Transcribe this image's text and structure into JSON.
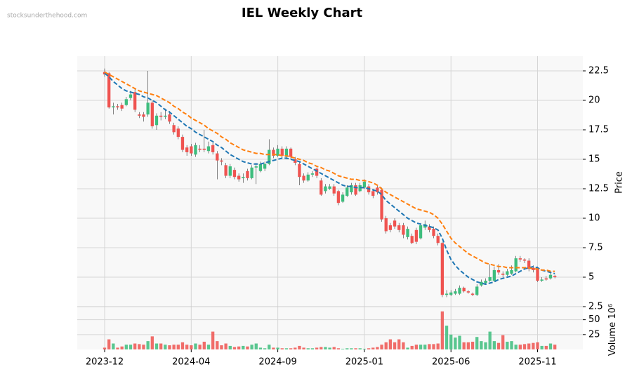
{
  "chart_data": {
    "type": "candlestick",
    "title": "IEL Weekly Chart",
    "watermark": "stocksunderthehood.com",
    "y_label": "Price",
    "volume_label": "Volume",
    "volume_offset": "10⁶",
    "up_color": "#3dbd7d",
    "down_color": "#ef5350",
    "categories": [
      "2023-12",
      null,
      null,
      null,
      null,
      null,
      null,
      null,
      null,
      null,
      null,
      null,
      null,
      null,
      null,
      null,
      null,
      null,
      null,
      null,
      "2024-04",
      null,
      null,
      null,
      null,
      null,
      null,
      null,
      null,
      null,
      null,
      null,
      null,
      null,
      null,
      null,
      null,
      null,
      null,
      null,
      "2024-09",
      null,
      null,
      null,
      null,
      null,
      null,
      null,
      null,
      null,
      null,
      null,
      null,
      null,
      null,
      null,
      null,
      null,
      null,
      null,
      "2025-01",
      null,
      null,
      null,
      null,
      null,
      null,
      null,
      null,
      null,
      null,
      null,
      null,
      null,
      null,
      null,
      null,
      null,
      null,
      null,
      "2025-06",
      null,
      null,
      null,
      null,
      null,
      null,
      null,
      null,
      null,
      null,
      null,
      null,
      null,
      null,
      null,
      null,
      null,
      null,
      null,
      "2025-11",
      null,
      null,
      null,
      null
    ],
    "open": [
      22.4,
      22.3,
      19.4,
      19.5,
      19.6,
      19.6,
      20.2,
      20.7,
      18.8,
      18.8,
      18.8,
      19.8,
      17.9,
      18.7,
      18.6,
      18.8,
      17.9,
      17.6,
      16.9,
      16.0,
      16.1,
      15.4,
      15.9,
      15.9,
      15.7,
      16.2,
      15.5,
      14.9,
      14.5,
      13.6,
      14.1,
      13.6,
      13.4,
      14.0,
      13.4,
      14.3,
      14.0,
      14.2,
      14.6,
      15.8,
      15.3,
      15.9,
      15.2,
      15.9,
      15.0,
      14.6,
      13.6,
      13.2,
      13.7,
      14.2,
      13.2,
      12.3,
      12.5,
      12.7,
      12.3,
      11.4,
      11.9,
      12.2,
      12.8,
      12.3,
      12.6,
      12.7,
      12.3,
      12.6,
      12.4,
      10.0,
      9.4,
      9.8,
      9.4,
      9.4,
      8.4,
      8.5,
      9.0,
      8.3,
      9.2,
      9.3,
      9.1,
      8.5,
      7.9,
      3.5,
      3.5,
      3.6,
      3.6,
      4.1,
      3.8,
      3.6,
      3.5,
      4.3,
      4.5,
      4.7,
      4.7,
      5.6,
      5.3,
      5.2,
      5.3,
      5.5,
      6.6,
      6.5,
      6.4,
      5.8,
      5.8,
      4.7,
      4.9,
      4.9,
      5.1
    ],
    "high": [
      22.7,
      22.4,
      19.8,
      19.7,
      19.8,
      20.3,
      20.8,
      21.0,
      19.0,
      19.0,
      22.5,
      20.0,
      18.9,
      19.0,
      19.3,
      19.1,
      18.1,
      17.8,
      17.1,
      16.2,
      16.3,
      16.4,
      16.2,
      17.5,
      16.5,
      16.4,
      15.7,
      15.1,
      14.7,
      14.6,
      14.3,
      13.8,
      13.8,
      14.2,
      14.5,
      14.7,
      14.8,
      14.8,
      16.7,
      16.0,
      16.2,
      16.1,
      16.1,
      16.0,
      15.2,
      14.8,
      13.8,
      13.9,
      14.0,
      14.3,
      13.4,
      12.9,
      12.9,
      12.9,
      12.4,
      12.2,
      12.8,
      13.0,
      13.0,
      13.0,
      13.3,
      12.9,
      12.5,
      12.8,
      12.6,
      10.2,
      9.6,
      10.0,
      9.6,
      9.6,
      9.3,
      8.7,
      9.2,
      9.6,
      9.8,
      9.5,
      9.3,
      8.7,
      8.0,
      3.9,
      3.9,
      4.0,
      4.3,
      4.2,
      3.9,
      3.7,
      4.4,
      4.8,
      4.9,
      6.1,
      5.9,
      6.1,
      5.5,
      5.7,
      6.0,
      6.8,
      6.8,
      6.6,
      6.6,
      6.0,
      5.9,
      5.0,
      5.1,
      5.4,
      5.2
    ],
    "low": [
      22.0,
      19.3,
      18.8,
      19.2,
      19.1,
      19.5,
      20.0,
      19.0,
      18.5,
      18.2,
      18.6,
      17.6,
      17.5,
      18.3,
      18.4,
      18.0,
      17.1,
      16.7,
      15.6,
      15.3,
      15.3,
      15.2,
      15.6,
      15.6,
      15.5,
      15.4,
      13.3,
      14.5,
      13.4,
      13.4,
      13.3,
      13.1,
      13.0,
      13.2,
      13.3,
      12.9,
      13.9,
      14.0,
      14.5,
      15.1,
      15.2,
      15.1,
      15.0,
      15.0,
      14.5,
      12.8,
      13.0,
      13.1,
      13.5,
      13.4,
      11.9,
      12.1,
      12.4,
      11.9,
      11.1,
      11.3,
      11.8,
      12.0,
      11.9,
      12.2,
      12.5,
      12.0,
      11.7,
      12.0,
      9.7,
      8.7,
      8.8,
      9.1,
      8.8,
      8.3,
      8.2,
      7.8,
      7.8,
      8.2,
      9.0,
      8.8,
      8.3,
      7.7,
      3.3,
      3.3,
      3.4,
      3.5,
      3.5,
      3.7,
      3.6,
      3.4,
      3.4,
      4.2,
      4.4,
      4.6,
      4.6,
      5.2,
      5.0,
      5.1,
      5.2,
      5.4,
      6.3,
      6.2,
      5.5,
      5.4,
      4.6,
      4.6,
      4.7,
      4.8,
      4.9
    ],
    "close": [
      22.2,
      19.4,
      19.5,
      19.4,
      19.3,
      20.1,
      20.5,
      19.2,
      18.7,
      18.6,
      19.8,
      17.8,
      18.7,
      18.6,
      18.7,
      18.2,
      17.3,
      16.9,
      15.8,
      15.6,
      15.5,
      16.2,
      15.8,
      15.8,
      16.1,
      15.6,
      14.9,
      14.8,
      13.6,
      14.4,
      13.5,
      13.3,
      13.5,
      13.4,
      14.3,
      14.4,
      14.6,
      14.6,
      15.8,
      15.3,
      15.9,
      15.3,
      15.9,
      15.2,
      14.7,
      13.5,
      13.2,
      13.7,
      13.8,
      13.6,
      12.0,
      12.7,
      12.7,
      12.1,
      11.3,
      12.0,
      12.6,
      12.8,
      12.0,
      12.8,
      13.1,
      12.2,
      11.9,
      12.2,
      9.9,
      8.9,
      9.0,
      9.3,
      9.0,
      8.6,
      9.1,
      7.9,
      8.0,
      9.4,
      9.5,
      9.0,
      8.5,
      7.9,
      3.5,
      3.6,
      3.7,
      3.8,
      4.1,
      3.8,
      3.7,
      3.5,
      4.2,
      4.6,
      4.7,
      5.0,
      5.6,
      5.4,
      5.2,
      5.5,
      5.6,
      6.6,
      6.5,
      6.4,
      5.7,
      5.6,
      4.7,
      4.8,
      4.8,
      5.2,
      5.0
    ],
    "volume": [
      3,
      17,
      10,
      3,
      5,
      8,
      8,
      10,
      9,
      8,
      14,
      22,
      10,
      10,
      8,
      7,
      8,
      8,
      12,
      8,
      7,
      10,
      8,
      13,
      8,
      30,
      14,
      7,
      10,
      6,
      4,
      5,
      6,
      5,
      8,
      10,
      3,
      2,
      8,
      3,
      3,
      2,
      2,
      2,
      3,
      6,
      3,
      2,
      2,
      3,
      4,
      4,
      3,
      4,
      2,
      1,
      2,
      2,
      2,
      2,
      1,
      2,
      3,
      4,
      8,
      12,
      17,
      12,
      17,
      12,
      3,
      6,
      8,
      8,
      8,
      9,
      9,
      10,
      64,
      40,
      25,
      20,
      23,
      12,
      12,
      13,
      21,
      14,
      12,
      30,
      14,
      11,
      24,
      13,
      14,
      8,
      8,
      9,
      10,
      11,
      12,
      6,
      6,
      10,
      8
    ],
    "moving_averages": [
      {
        "color": "#1f77b4",
        "values": [
          22.3,
          22.0,
          21.6,
          21.3,
          21.0,
          20.8,
          20.7,
          20.6,
          20.5,
          20.3,
          20.2,
          20.0,
          19.8,
          19.5,
          19.2,
          19.0,
          18.7,
          18.4,
          18.1,
          17.8,
          17.6,
          17.3,
          17.1,
          16.9,
          16.7,
          16.5,
          16.2,
          16.0,
          15.7,
          15.4,
          15.2,
          15.0,
          14.8,
          14.7,
          14.6,
          14.6,
          14.6,
          14.7,
          14.8,
          14.9,
          15.0,
          15.1,
          15.1,
          15.0,
          14.9,
          14.8,
          14.6,
          14.4,
          14.2,
          14.0,
          13.8,
          13.6,
          13.4,
          13.2,
          13.0,
          12.8,
          12.7,
          12.7,
          12.6,
          12.6,
          12.6,
          12.5,
          12.4,
          12.3,
          12.0,
          11.5,
          11.2,
          10.9,
          10.6,
          10.3,
          10.0,
          9.8,
          9.6,
          9.5,
          9.4,
          9.3,
          9.2,
          9.0,
          8.3,
          7.3,
          6.5,
          6.0,
          5.6,
          5.3,
          5.0,
          4.8,
          4.6,
          4.5,
          4.4,
          4.5,
          4.6,
          4.8,
          4.9,
          5.0,
          5.1,
          5.3,
          5.5,
          5.7,
          5.8,
          5.9,
          5.8,
          5.6,
          5.5,
          5.4,
          5.3
        ]
      },
      {
        "color": "#ff7f0e",
        "values": [
          22.4,
          22.2,
          22.0,
          21.8,
          21.6,
          21.4,
          21.2,
          21.0,
          20.8,
          20.7,
          20.6,
          20.5,
          20.4,
          20.2,
          20.0,
          19.8,
          19.5,
          19.3,
          19.0,
          18.8,
          18.5,
          18.3,
          18.1,
          17.9,
          17.6,
          17.4,
          17.2,
          16.9,
          16.7,
          16.4,
          16.2,
          16.0,
          15.8,
          15.7,
          15.6,
          15.5,
          15.5,
          15.4,
          15.4,
          15.4,
          15.4,
          15.3,
          15.3,
          15.2,
          15.1,
          15.0,
          14.9,
          14.7,
          14.6,
          14.4,
          14.3,
          14.1,
          14.0,
          13.8,
          13.6,
          13.5,
          13.4,
          13.3,
          13.3,
          13.2,
          13.2,
          13.1,
          13.0,
          12.8,
          12.5,
          12.2,
          12.0,
          11.8,
          11.6,
          11.4,
          11.2,
          11.0,
          10.8,
          10.7,
          10.6,
          10.5,
          10.3,
          10.0,
          9.5,
          8.9,
          8.3,
          7.9,
          7.6,
          7.3,
          7.0,
          6.8,
          6.6,
          6.4,
          6.2,
          6.1,
          6.0,
          5.9,
          5.9,
          5.8,
          5.8,
          5.8,
          5.8,
          5.8,
          5.8,
          5.7,
          5.7,
          5.6,
          5.6,
          5.5,
          5.5
        ]
      }
    ],
    "ylim": [
      2.5,
      23.75
    ],
    "yticks": [
      2.5,
      5.0,
      7.5,
      10.0,
      12.5,
      15.0,
      17.5,
      20.0,
      22.5
    ],
    "volume_ylim": [
      0,
      72
    ],
    "volume_ticks": [
      25,
      50
    ],
    "grid": true
  }
}
